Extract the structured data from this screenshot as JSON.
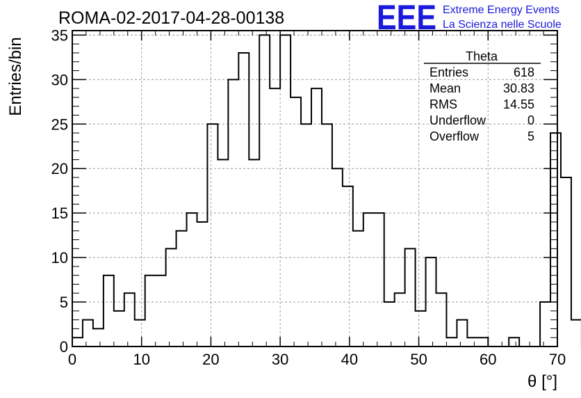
{
  "header": {
    "run_title": "ROMA-02-2017-04-28-00138",
    "logo_text": "EEE",
    "logo_line1": "Extreme Energy Events",
    "logo_line2": "La Scienza nelle Scuole"
  },
  "stats": {
    "name": "Theta",
    "rows": [
      {
        "label": "Entries",
        "value": "618"
      },
      {
        "label": "Mean",
        "value": "30.83"
      },
      {
        "label": "RMS",
        "value": "14.55"
      },
      {
        "label": "Underflow",
        "value": "0"
      },
      {
        "label": "Overflow",
        "value": "5"
      }
    ]
  },
  "colors": {
    "histogram": "#000000",
    "grid": "#9a9a9a",
    "logo": "#1a1adc"
  },
  "chart_data": {
    "type": "bar",
    "histogram": true,
    "bin_width": 1.5,
    "x_start": 0,
    "values": [
      1,
      3,
      2,
      8,
      4,
      6,
      3,
      8,
      8,
      11,
      13,
      15,
      14,
      25,
      21,
      30,
      33,
      21,
      35,
      29,
      35,
      28,
      25,
      29,
      25,
      20,
      18,
      13,
      15,
      15,
      5,
      6,
      11,
      4,
      10,
      6,
      1,
      3,
      1,
      1,
      0,
      0,
      1,
      0,
      0,
      5,
      24,
      19,
      3
    ],
    "xlim": [
      0,
      70
    ],
    "ylim": [
      0,
      35.5
    ],
    "x_ticks": [
      0,
      10,
      20,
      30,
      40,
      50,
      60,
      70
    ],
    "y_ticks": [
      0,
      5,
      10,
      15,
      20,
      25,
      30,
      35
    ],
    "xlabel": "θ [°]",
    "ylabel": "Entries/bin",
    "grid": true,
    "legend": "none"
  }
}
